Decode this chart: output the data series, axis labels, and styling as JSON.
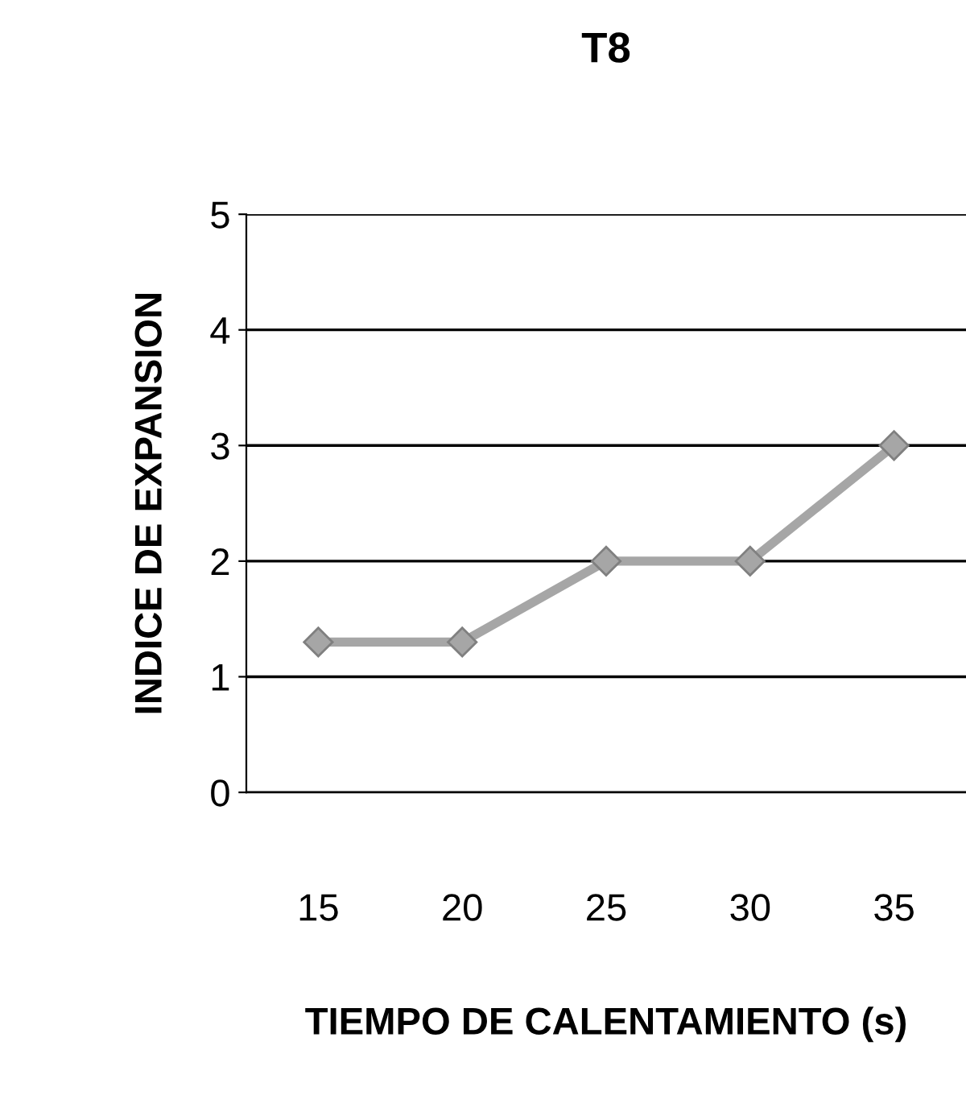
{
  "chart_data": {
    "type": "line",
    "title": "T8",
    "xlabel": "TIEMPO DE CALENTAMIENTO (s)",
    "ylabel": "INDICE DE EXPANSION",
    "categories": [
      "15",
      "20",
      "25",
      "30",
      "35"
    ],
    "series": [
      {
        "color": "#a6a6a6",
        "values": [
          1.3,
          1.3,
          2.0,
          2.0,
          3.0
        ]
      }
    ],
    "ylim": [
      0,
      5
    ],
    "yticks": [
      0,
      1,
      2,
      3,
      4,
      5
    ],
    "grid": "y",
    "marker": "diamond",
    "line_style": "solid"
  }
}
